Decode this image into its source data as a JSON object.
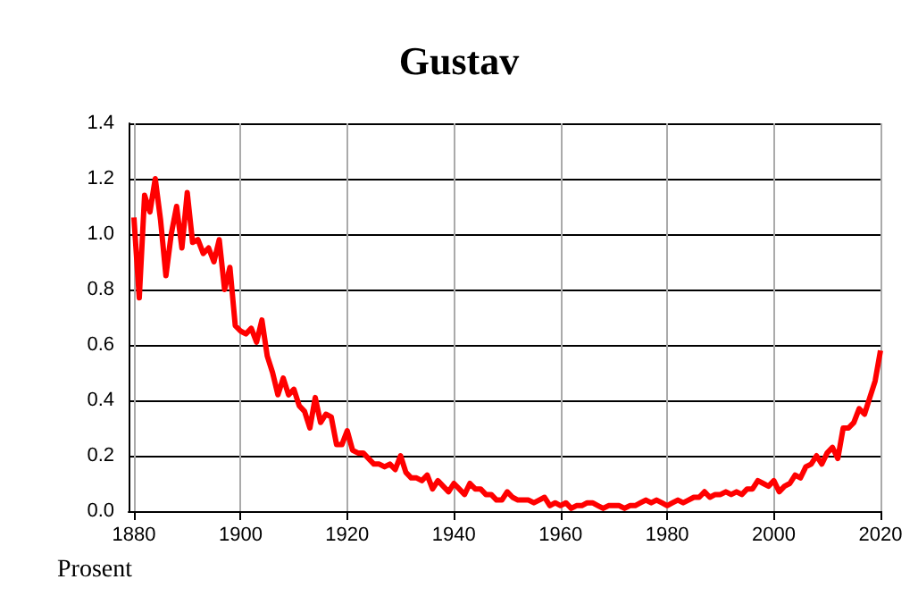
{
  "chart_data": {
    "type": "line",
    "title": "Gustav",
    "ylabel": "Prosent",
    "x": [
      1880,
      1881,
      1882,
      1883,
      1884,
      1885,
      1886,
      1887,
      1888,
      1889,
      1890,
      1891,
      1892,
      1893,
      1894,
      1895,
      1896,
      1897,
      1898,
      1899,
      1900,
      1901,
      1902,
      1903,
      1904,
      1905,
      1906,
      1907,
      1908,
      1909,
      1910,
      1911,
      1912,
      1913,
      1914,
      1915,
      1916,
      1917,
      1918,
      1919,
      1920,
      1921,
      1922,
      1923,
      1924,
      1925,
      1926,
      1927,
      1928,
      1929,
      1930,
      1931,
      1932,
      1933,
      1934,
      1935,
      1936,
      1937,
      1938,
      1939,
      1940,
      1941,
      1942,
      1943,
      1944,
      1945,
      1946,
      1947,
      1948,
      1949,
      1950,
      1951,
      1952,
      1953,
      1954,
      1955,
      1956,
      1957,
      1958,
      1959,
      1960,
      1961,
      1962,
      1963,
      1964,
      1965,
      1966,
      1967,
      1968,
      1969,
      1970,
      1971,
      1972,
      1973,
      1974,
      1975,
      1976,
      1977,
      1978,
      1979,
      1980,
      1981,
      1982,
      1983,
      1984,
      1985,
      1986,
      1987,
      1988,
      1989,
      1990,
      1991,
      1992,
      1993,
      1994,
      1995,
      1996,
      1997,
      1998,
      1999,
      2000,
      2001,
      2002,
      2003,
      2004,
      2005,
      2006,
      2007,
      2008,
      2009,
      2010,
      2011,
      2012,
      2013,
      2014,
      2015,
      2016,
      2017,
      2018,
      2019,
      2020
    ],
    "series": [
      {
        "color": "#ff0000",
        "values": [
          1.06,
          0.77,
          1.14,
          1.08,
          1.2,
          1.05,
          0.85,
          1.0,
          1.1,
          0.95,
          1.15,
          0.97,
          0.98,
          0.93,
          0.95,
          0.9,
          0.98,
          0.8,
          0.88,
          0.67,
          0.65,
          0.64,
          0.66,
          0.61,
          0.69,
          0.56,
          0.5,
          0.42,
          0.48,
          0.42,
          0.44,
          0.38,
          0.36,
          0.3,
          0.41,
          0.32,
          0.35,
          0.34,
          0.24,
          0.24,
          0.29,
          0.22,
          0.21,
          0.21,
          0.19,
          0.17,
          0.17,
          0.16,
          0.17,
          0.15,
          0.2,
          0.14,
          0.12,
          0.12,
          0.11,
          0.13,
          0.08,
          0.11,
          0.09,
          0.07,
          0.1,
          0.08,
          0.06,
          0.1,
          0.08,
          0.08,
          0.06,
          0.06,
          0.04,
          0.04,
          0.07,
          0.05,
          0.04,
          0.04,
          0.04,
          0.03,
          0.04,
          0.05,
          0.02,
          0.03,
          0.02,
          0.03,
          0.01,
          0.02,
          0.02,
          0.03,
          0.03,
          0.02,
          0.01,
          0.02,
          0.02,
          0.02,
          0.01,
          0.02,
          0.02,
          0.03,
          0.04,
          0.03,
          0.04,
          0.03,
          0.02,
          0.03,
          0.04,
          0.03,
          0.04,
          0.05,
          0.05,
          0.07,
          0.05,
          0.06,
          0.06,
          0.07,
          0.06,
          0.07,
          0.06,
          0.08,
          0.08,
          0.11,
          0.1,
          0.09,
          0.11,
          0.07,
          0.09,
          0.1,
          0.13,
          0.12,
          0.16,
          0.17,
          0.2,
          0.17,
          0.21,
          0.23,
          0.19,
          0.3,
          0.3,
          0.32,
          0.37,
          0.35,
          0.41,
          0.47,
          0.58
        ]
      }
    ],
    "xlim": [
      1879,
      2020
    ],
    "xticks": [
      1880,
      1900,
      1920,
      1940,
      1960,
      1980,
      2000,
      2020
    ],
    "ylim": [
      0,
      1.4
    ],
    "yticks": [
      {
        "value": 0,
        "label": "0.0"
      },
      {
        "value": 0.2,
        "label": "0.2"
      },
      {
        "value": 0.4,
        "label": "0.4"
      },
      {
        "value": 0.6,
        "label": "0.6"
      },
      {
        "value": 0.8,
        "label": "0.8"
      },
      {
        "value": 1.0,
        "label": "1.0"
      },
      {
        "value": 1.2,
        "label": "1.2"
      },
      {
        "value": 1.4,
        "label": "1.4"
      }
    ],
    "grid": true,
    "marker": "none",
    "line_style": "solid"
  }
}
